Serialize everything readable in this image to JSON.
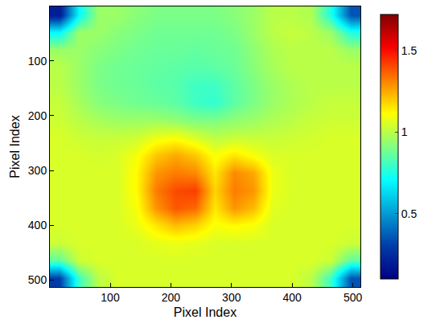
{
  "chart_data": {
    "type": "heatmap",
    "x_label": "Pixel Index",
    "y_label": "Pixel Index",
    "x": [
      16,
      48,
      80,
      112,
      144,
      176,
      208,
      240,
      272,
      304,
      336,
      368,
      400,
      432,
      464,
      496
    ],
    "y": [
      16,
      48,
      80,
      112,
      144,
      176,
      208,
      240,
      272,
      304,
      336,
      368,
      400,
      432,
      464,
      496
    ],
    "cells": [
      [
        0.2,
        0.7,
        0.95,
        0.95,
        0.92,
        0.9,
        0.9,
        0.9,
        0.9,
        0.92,
        0.95,
        1.0,
        1.0,
        0.98,
        0.75,
        0.35
      ],
      [
        0.7,
        0.95,
        0.95,
        0.92,
        0.9,
        0.88,
        0.88,
        0.88,
        0.88,
        0.9,
        0.95,
        1.0,
        1.02,
        1.0,
        0.95,
        0.75
      ],
      [
        0.95,
        0.95,
        0.92,
        0.9,
        0.88,
        0.87,
        0.87,
        0.86,
        0.87,
        0.88,
        0.93,
        0.98,
        1.0,
        1.0,
        1.0,
        0.95
      ],
      [
        1.0,
        0.95,
        0.9,
        0.88,
        0.87,
        0.86,
        0.85,
        0.84,
        0.85,
        0.87,
        0.92,
        0.97,
        1.0,
        1.0,
        1.0,
        1.0
      ],
      [
        1.0,
        0.95,
        0.9,
        0.88,
        0.87,
        0.85,
        0.84,
        0.8,
        0.8,
        0.85,
        0.9,
        0.95,
        0.98,
        1.0,
        1.0,
        1.0
      ],
      [
        1.02,
        0.97,
        0.92,
        0.9,
        0.88,
        0.87,
        0.85,
        0.8,
        0.78,
        0.85,
        0.9,
        0.95,
        0.98,
        1.0,
        1.02,
        1.02
      ],
      [
        1.03,
        1.0,
        0.97,
        0.95,
        0.95,
        0.95,
        0.93,
        0.9,
        0.9,
        0.93,
        0.95,
        0.98,
        1.0,
        1.02,
        1.03,
        1.03
      ],
      [
        1.05,
        1.03,
        1.02,
        1.02,
        1.03,
        1.08,
        1.1,
        1.05,
        1.0,
        1.02,
        1.02,
        1.02,
        1.03,
        1.04,
        1.05,
        1.05
      ],
      [
        1.05,
        1.05,
        1.04,
        1.05,
        1.1,
        1.2,
        1.25,
        1.2,
        1.1,
        1.15,
        1.1,
        1.05,
        1.05,
        1.05,
        1.05,
        1.05
      ],
      [
        1.05,
        1.05,
        1.05,
        1.05,
        1.12,
        1.28,
        1.32,
        1.3,
        1.15,
        1.3,
        1.25,
        1.08,
        1.05,
        1.05,
        1.05,
        1.05
      ],
      [
        1.05,
        1.05,
        1.05,
        1.05,
        1.12,
        1.32,
        1.4,
        1.42,
        1.18,
        1.32,
        1.28,
        1.08,
        1.05,
        1.05,
        1.05,
        1.05
      ],
      [
        1.05,
        1.05,
        1.05,
        1.05,
        1.1,
        1.28,
        1.38,
        1.35,
        1.15,
        1.28,
        1.22,
        1.06,
        1.05,
        1.05,
        1.05,
        1.05
      ],
      [
        1.05,
        1.05,
        1.05,
        1.05,
        1.08,
        1.15,
        1.22,
        1.18,
        1.1,
        1.12,
        1.1,
        1.05,
        1.05,
        1.05,
        1.05,
        1.05
      ],
      [
        1.03,
        1.05,
        1.05,
        1.05,
        1.05,
        1.07,
        1.08,
        1.07,
        1.05,
        1.05,
        1.05,
        1.05,
        1.05,
        1.05,
        1.05,
        1.03
      ],
      [
        0.85,
        1.03,
        1.05,
        1.05,
        1.05,
        1.05,
        1.05,
        1.05,
        1.05,
        1.05,
        1.05,
        1.05,
        1.05,
        1.05,
        1.03,
        0.85
      ],
      [
        0.3,
        0.8,
        1.0,
        1.05,
        1.05,
        1.05,
        1.05,
        1.05,
        1.05,
        1.05,
        1.05,
        1.05,
        1.05,
        1.0,
        0.8,
        0.35
      ]
    ],
    "xlim": [
      0.5,
      512.5
    ],
    "ylim": [
      512.5,
      0.5
    ],
    "xticks": [
      100,
      200,
      300,
      400,
      500
    ],
    "yticks": [
      100,
      200,
      300,
      400,
      500
    ],
    "colorbar_lim": [
      0.1,
      1.72
    ],
    "colorbar_ticks": [
      0.5,
      1,
      1.5
    ],
    "color": "jet",
    "grid": false
  }
}
